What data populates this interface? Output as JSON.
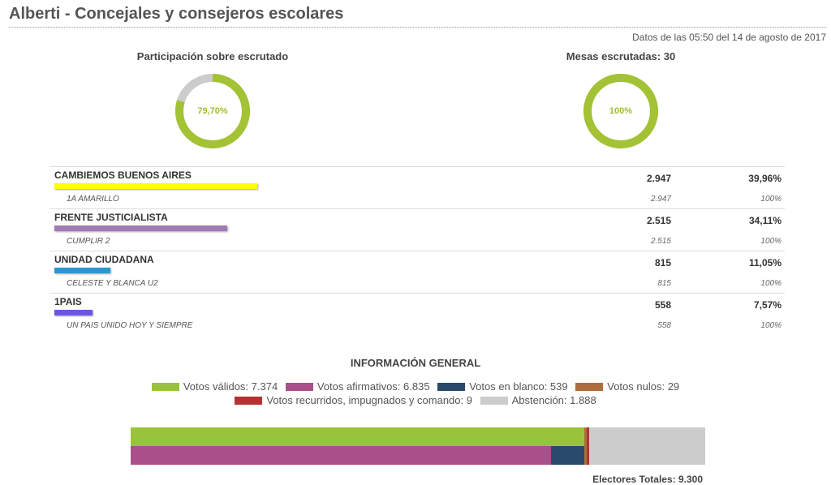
{
  "header": {
    "title": "Alberti - Concejales y consejeros escolares",
    "timestamp": "Datos de las 05:50 del 14 de agosto de 2017"
  },
  "participation": {
    "label": "Participación sobre escrutado",
    "display": "79,70%",
    "value": 79.7
  },
  "tables": {
    "label": "Mesas escrutadas: 30",
    "display": "100%",
    "value": 100
  },
  "parties": [
    {
      "name": "CAMBIEMOS BUENOS AIRES",
      "votes": "2.947",
      "pct": "39,96%",
      "share": 39.96,
      "color": "#ffff00",
      "list": {
        "name": "1A AMARILLO",
        "votes": "2.947",
        "pct": "100%"
      }
    },
    {
      "name": "FRENTE JUSTICIALISTA",
      "votes": "2.515",
      "pct": "34,11%",
      "share": 34.11,
      "color": "#a07bb4",
      "list": {
        "name": "CUMPLIR 2",
        "votes": "2.515",
        "pct": "100%"
      }
    },
    {
      "name": "UNIDAD CIUDADANA",
      "votes": "815",
      "pct": "11,05%",
      "share": 11.05,
      "color": "#2a97d1",
      "list": {
        "name": "CELESTE Y BLANCA U2",
        "votes": "815",
        "pct": "100%"
      }
    },
    {
      "name": "1PAIS",
      "votes": "558",
      "pct": "7,57%",
      "share": 7.57,
      "color": "#6b55e6",
      "list": {
        "name": "UN PAIS UNIDO HOY Y SIEMPRE",
        "votes": "558",
        "pct": "100%"
      }
    }
  ],
  "general": {
    "title": "INFORMACIÓN GENERAL",
    "electors_label": "Electores Totales: 9.300"
  },
  "chart_data": {
    "type": "bar",
    "title": "INFORMACIÓN GENERAL",
    "total": 9300,
    "legend": [
      {
        "label": "Votos válidos: 7.374",
        "name": "Votos válidos",
        "value": 7374,
        "color": "#99c43a"
      },
      {
        "label": "Votos afirmativos: 6.835",
        "name": "Votos afirmativos",
        "value": 6835,
        "color": "#ab4f8a"
      },
      {
        "label": "Votos en blanco: 539",
        "name": "Votos en blanco",
        "value": 539,
        "color": "#2a4a6b"
      },
      {
        "label": "Votos nulos: 29",
        "name": "Votos nulos",
        "value": 29,
        "color": "#b06c3a"
      },
      {
        "label": "Votos recurridos, impugnados y comando: 9",
        "name": "Votos recurridos, impugnados y comando",
        "value": 9,
        "color": "#b33333"
      },
      {
        "label": "Abstención: 1.888",
        "name": "Abstención",
        "value": 1888,
        "color": "#cccccc"
      }
    ],
    "rows": [
      {
        "series": [
          "Votos válidos",
          "Votos nulos",
          "Votos recurridos, impugnados y comando",
          "Abstención"
        ]
      },
      {
        "series": [
          "Votos afirmativos",
          "Votos en blanco",
          "Votos nulos",
          "Votos recurridos, impugnados y comando",
          "Abstención"
        ]
      }
    ]
  }
}
